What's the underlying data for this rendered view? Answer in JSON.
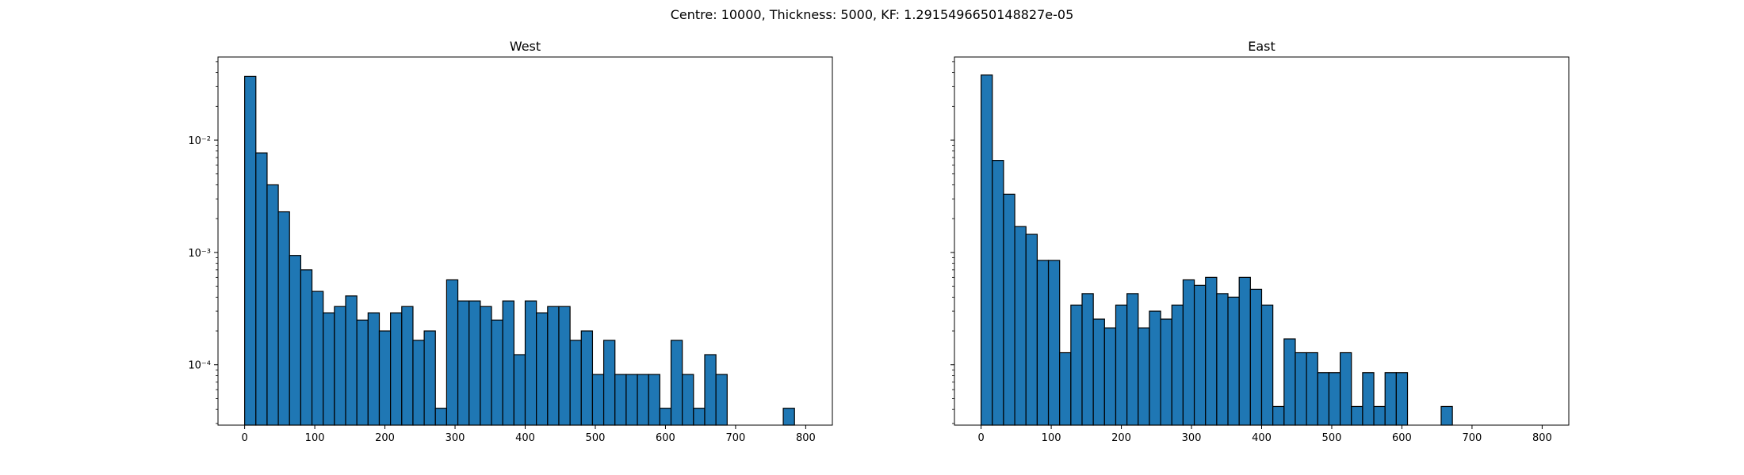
{
  "figure": {
    "suptitle": "Centre: 10000, Thickness: 5000, KF: 1.2915496650148827e-05"
  },
  "chart_data": [
    {
      "type": "histogram",
      "title": "West",
      "xlabel": "",
      "ylabel": "",
      "yscale": "log",
      "xlim": [
        -38,
        838
      ],
      "ylim": [
        2.9e-05,
        0.055
      ],
      "x_ticks": [
        0,
        100,
        200,
        300,
        400,
        500,
        600,
        700,
        800
      ],
      "y_ticks": [
        0.0001,
        0.001,
        0.01
      ],
      "y_tick_labels": [
        "10⁻⁴",
        "10⁻³",
        "10⁻²"
      ],
      "bar_color": "#1f77b4",
      "edge_color": "#000000",
      "bin_edges": [
        0,
        16,
        32,
        48,
        64,
        80,
        96,
        112,
        128,
        144,
        160,
        176,
        192,
        208,
        224,
        240,
        256,
        272,
        288,
        304,
        320,
        336,
        352,
        368,
        384,
        400,
        416,
        432,
        448,
        464,
        480,
        496,
        512,
        528,
        544,
        560,
        576,
        592,
        608,
        624,
        640,
        656,
        672,
        688,
        704,
        720,
        736,
        752,
        768,
        784,
        800
      ],
      "values": [
        0.037,
        0.0077,
        0.004,
        0.0023,
        0.00094,
        0.0007,
        0.00045,
        0.00029,
        0.00033,
        0.00041,
        0.00025,
        0.00029,
        0.0002,
        0.00029,
        0.00033,
        0.000165,
        0.0002,
        4.1e-05,
        0.00057,
        0.00037,
        0.00037,
        0.00033,
        0.00025,
        0.00037,
        0.000123,
        0.00037,
        0.00029,
        0.00033,
        0.00033,
        0.000165,
        0.0002,
        8.2e-05,
        0.000165,
        8.2e-05,
        8.2e-05,
        8.2e-05,
        8.2e-05,
        4.1e-05,
        0.000165,
        8.2e-05,
        4.1e-05,
        0.000123,
        8.2e-05,
        0,
        0,
        0,
        0,
        0,
        4.1e-05,
        0
      ]
    },
    {
      "type": "histogram",
      "title": "East",
      "xlabel": "",
      "ylabel": "",
      "yscale": "log",
      "xlim": [
        -38,
        838
      ],
      "ylim": [
        2.9e-05,
        0.055
      ],
      "x_ticks": [
        0,
        100,
        200,
        300,
        400,
        500,
        600,
        700,
        800
      ],
      "bar_color": "#1f77b4",
      "edge_color": "#000000",
      "bin_edges": [
        0,
        16,
        32,
        48,
        64,
        80,
        96,
        112,
        128,
        144,
        160,
        176,
        192,
        208,
        224,
        240,
        256,
        272,
        288,
        304,
        320,
        336,
        352,
        368,
        384,
        400,
        416,
        432,
        448,
        464,
        480,
        496,
        512,
        528,
        544,
        560,
        576,
        592,
        608,
        624,
        640,
        656,
        672,
        688,
        704,
        720,
        736,
        752,
        768,
        784,
        800
      ],
      "values": [
        0.038,
        0.0066,
        0.0033,
        0.0017,
        0.00145,
        0.00085,
        0.00085,
        0.000128,
        0.00034,
        0.00043,
        0.000255,
        0.000213,
        0.00034,
        0.00043,
        0.000213,
        0.0003,
        0.000255,
        0.00034,
        0.00057,
        0.00051,
        0.0006,
        0.00043,
        0.0004,
        0.0006,
        0.00047,
        0.00034,
        4.25e-05,
        0.00017,
        0.000128,
        0.000128,
        8.5e-05,
        8.5e-05,
        0.000128,
        4.25e-05,
        8.5e-05,
        4.25e-05,
        8.5e-05,
        8.5e-05,
        0,
        0,
        0,
        4.25e-05,
        0,
        0,
        0,
        0,
        0,
        0,
        0,
        0
      ]
    }
  ]
}
